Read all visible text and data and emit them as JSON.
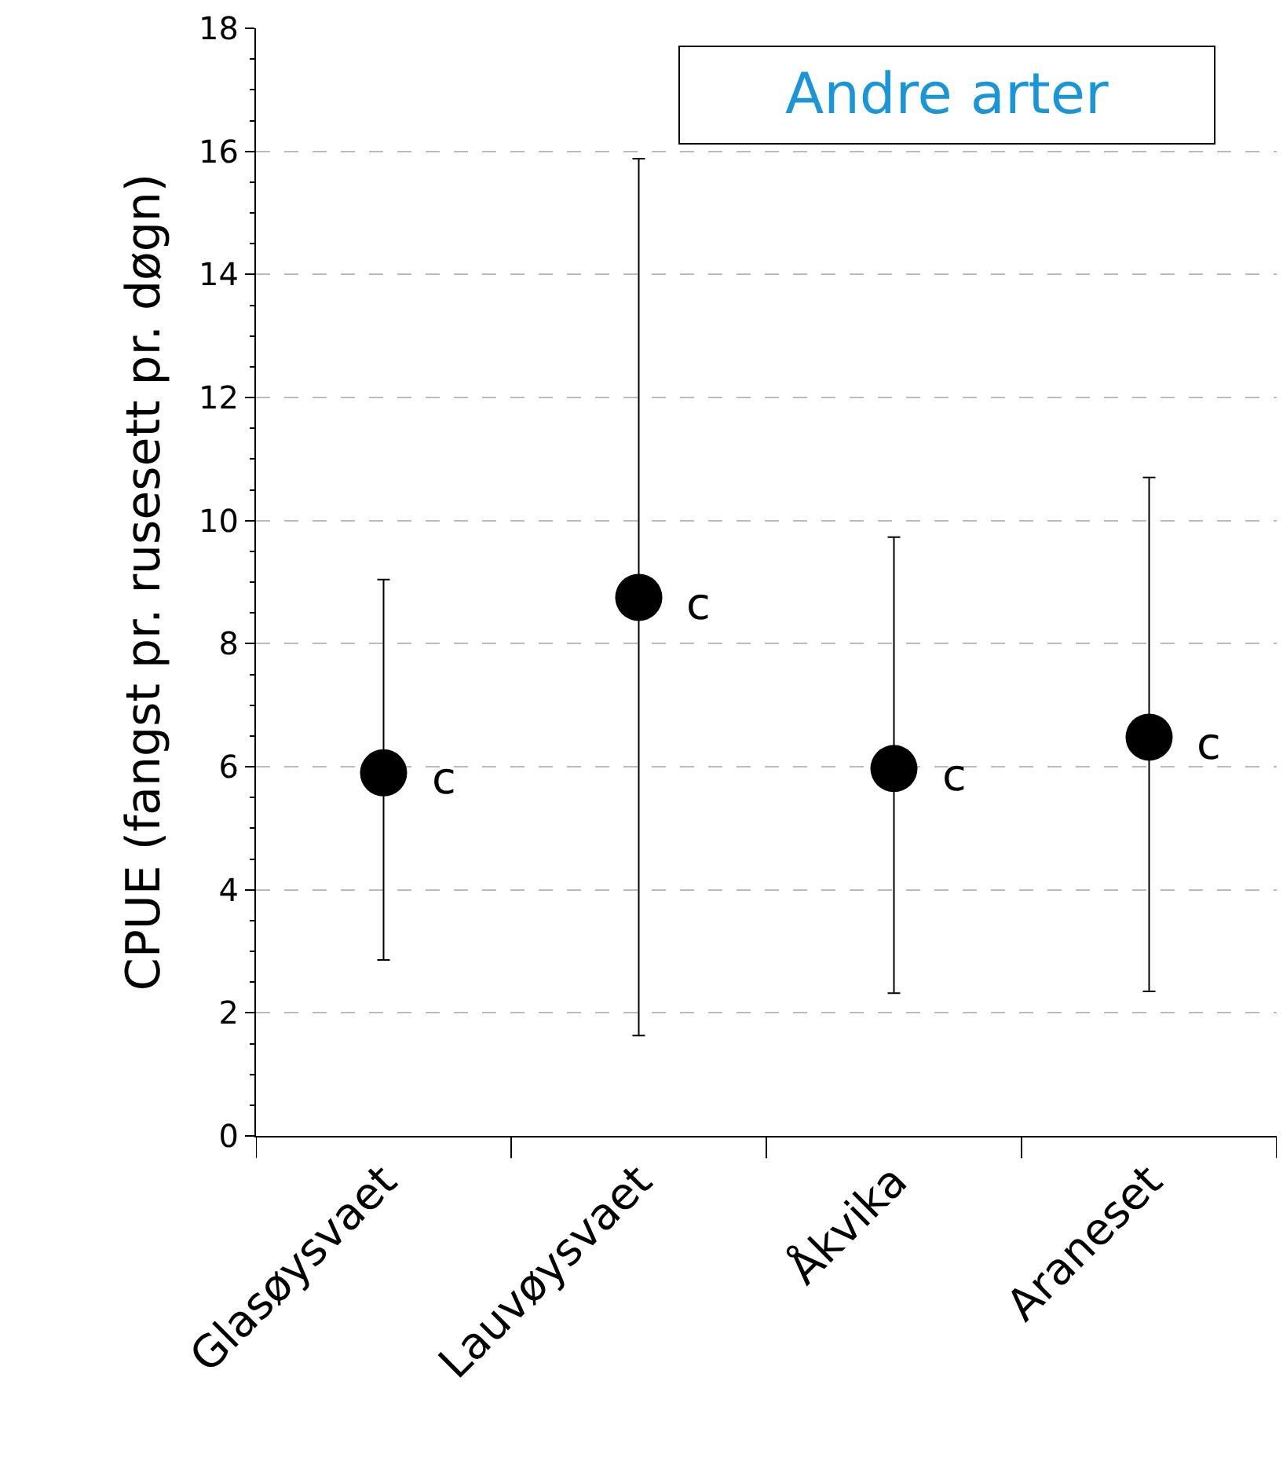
{
  "chart_data": {
    "type": "scatter",
    "title": "Andre arter",
    "ylabel": "CPUE (fangst pr. rusesett pr. døgn)",
    "categories": [
      "Glasøysvaet",
      "Lauvøysvaet",
      "Åkvika",
      "Araneset"
    ],
    "series": [
      {
        "color": "#000000",
        "values": [
          5.9,
          8.75,
          5.97,
          6.48
        ],
        "errors": [
          [
            2.86,
            9.04
          ],
          [
            1.63,
            15.88
          ],
          [
            2.32,
            9.73
          ],
          [
            2.35,
            10.7
          ]
        ]
      }
    ],
    "annotations": [
      {
        "text": "c",
        "x": "Glasøysvaet",
        "y": 5.9
      },
      {
        "text": "c",
        "x": "Lauvøysvaet",
        "y": 8.75
      },
      {
        "text": "c",
        "x": "Åkvika",
        "y": 5.97
      },
      {
        "text": "c",
        "x": "Araneset",
        "y": 6.48
      }
    ],
    "ylim": [
      0,
      18
    ],
    "yticks": [
      0,
      2,
      4,
      6,
      8,
      10,
      12,
      14,
      16,
      18
    ],
    "grid": "y",
    "marker": "circle"
  }
}
